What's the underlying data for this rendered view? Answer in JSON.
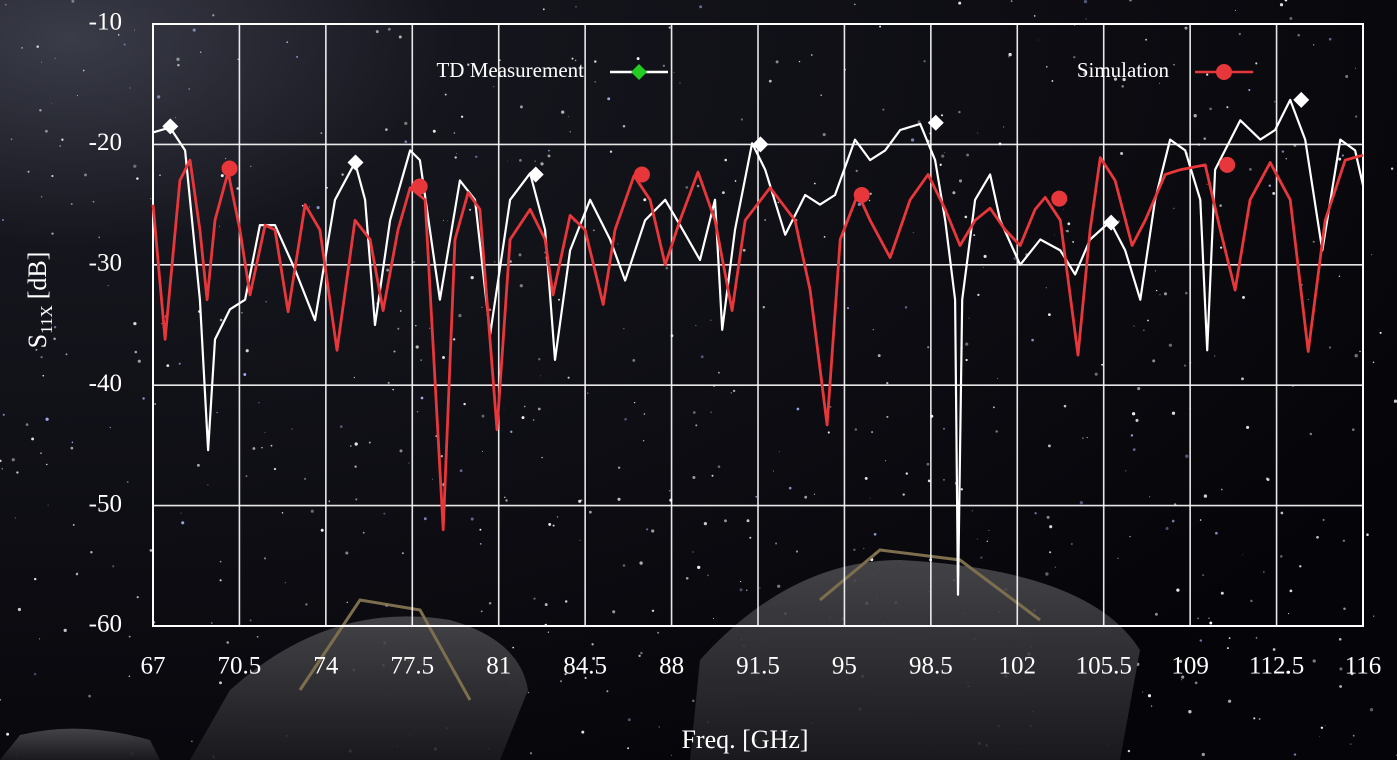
{
  "chart_data": {
    "type": "line",
    "xlabel": "Freq. [GHz]",
    "ylabel": "S",
    "ylabel_sub": "11X",
    "ylabel_unit": "[dB]",
    "xlim": [
      67,
      116
    ],
    "ylim": [
      -60,
      -10
    ],
    "xticks": [
      67,
      70.5,
      74,
      77.5,
      81,
      84.5,
      88,
      91.5,
      95,
      98.5,
      102,
      105.5,
      109,
      112.5,
      116
    ],
    "yticks": [
      -60,
      -50,
      -40,
      -30,
      -20,
      -10
    ],
    "grid": true,
    "series": [
      {
        "name": "TD Measurement",
        "color": "#ffffff",
        "marker": "diamond",
        "legend_marker_color": "#22cc22",
        "x": [
          67.0,
          67.69,
          68.3,
          68.9,
          69.23,
          69.51,
          70.12,
          70.73,
          71.33,
          71.94,
          72.75,
          73.56,
          74.37,
          75.18,
          75.59,
          75.99,
          76.6,
          77.41,
          77.81,
          78.62,
          79.43,
          80.04,
          80.65,
          81.46,
          82.27,
          82.88,
          83.28,
          83.89,
          84.7,
          85.51,
          86.12,
          86.93,
          87.74,
          88.34,
          89.15,
          89.76,
          90.05,
          90.57,
          91.26,
          91.79,
          92.6,
          93.41,
          94.01,
          94.62,
          95.43,
          96.04,
          96.65,
          97.26,
          98.07,
          98.67,
          99.08,
          99.48,
          99.6,
          99.77,
          100.29,
          100.9,
          101.31,
          102.12,
          102.93,
          103.74,
          104.34,
          104.95,
          105.76,
          106.37,
          106.98,
          107.58,
          108.19,
          108.8,
          109.41,
          109.69,
          110.01,
          111.03,
          111.84,
          112.44,
          113.05,
          113.66,
          114.35,
          115.08,
          115.68,
          116
        ],
        "values": [
          -19.0,
          -18.6,
          -20.5,
          -32.9,
          -45.4,
          -36.2,
          -33.7,
          -32.9,
          -26.7,
          -26.7,
          -30.4,
          -34.6,
          -24.6,
          -21.5,
          -24.6,
          -35.0,
          -26.3,
          -20.5,
          -21.3,
          -32.9,
          -23.0,
          -24.6,
          -35.8,
          -24.6,
          -22.4,
          -27.1,
          -37.9,
          -28.8,
          -24.6,
          -27.9,
          -31.3,
          -26.3,
          -24.6,
          -26.7,
          -29.6,
          -24.6,
          -35.4,
          -27.1,
          -19.9,
          -22.1,
          -27.5,
          -24.2,
          -25.0,
          -24.2,
          -19.6,
          -21.3,
          -20.5,
          -18.8,
          -18.3,
          -21.3,
          -26.3,
          -32.9,
          -57.4,
          -32.9,
          -24.6,
          -22.5,
          -26.3,
          -30.0,
          -27.9,
          -28.8,
          -30.8,
          -27.9,
          -26.4,
          -28.8,
          -32.9,
          -24.6,
          -19.6,
          -20.5,
          -24.6,
          -37.1,
          -22.1,
          -18.0,
          -19.6,
          -18.8,
          -16.3,
          -19.6,
          -28.8,
          -19.6,
          -20.5,
          -23.4
        ],
        "marker_x": [
          67.7,
          75.2,
          82.5,
          91.6,
          98.7,
          105.8,
          113.5
        ],
        "marker_values": [
          -18.5,
          -21.5,
          -22.5,
          -20,
          -18.2,
          -26.5,
          -16.3
        ]
      },
      {
        "name": "Simulation",
        "color": "#e8373a",
        "marker": "circle",
        "legend_marker_color": "#e8373a",
        "x": [
          67.0,
          67.49,
          68.09,
          68.5,
          68.9,
          69.19,
          69.51,
          70.04,
          70.52,
          70.93,
          71.54,
          71.94,
          72.47,
          73.16,
          73.76,
          74.45,
          75.18,
          75.79,
          76.32,
          76.92,
          77.41,
          78.02,
          78.75,
          79.23,
          79.76,
          80.24,
          80.93,
          81.46,
          82.27,
          82.88,
          83.2,
          83.89,
          84.5,
          85.23,
          85.71,
          86.48,
          87.13,
          87.74,
          88.34,
          89.07,
          89.76,
          90.45,
          90.98,
          91.99,
          93.0,
          93.61,
          94.3,
          94.83,
          95.55,
          96.04,
          96.85,
          97.66,
          98.39,
          99.08,
          99.68,
          100.29,
          100.9,
          101.51,
          102.12,
          102.72,
          103.13,
          103.74,
          104.46,
          104.95,
          105.36,
          105.96,
          106.65,
          107.18,
          107.99,
          108.6,
          109.61,
          110.22,
          110.82,
          111.43,
          112.24,
          113.05,
          113.78,
          114.47,
          115.28,
          116
        ],
        "values": [
          -25.0,
          -36.2,
          -23.0,
          -21.3,
          -27.1,
          -32.9,
          -26.3,
          -22.3,
          -27.1,
          -32.5,
          -26.7,
          -27.1,
          -33.9,
          -25.0,
          -27.1,
          -37.1,
          -26.3,
          -27.9,
          -33.8,
          -27.1,
          -23.6,
          -24.6,
          -52.0,
          -27.9,
          -24.0,
          -25.4,
          -43.7,
          -27.9,
          -25.4,
          -27.9,
          -32.5,
          -25.9,
          -27.1,
          -33.3,
          -27.1,
          -22.6,
          -24.6,
          -30.0,
          -26.3,
          -22.3,
          -26.3,
          -33.8,
          -26.3,
          -23.6,
          -26.3,
          -32.1,
          -43.3,
          -27.9,
          -24.1,
          -26.3,
          -29.4,
          -24.6,
          -22.5,
          -25.4,
          -28.4,
          -26.3,
          -25.3,
          -27.1,
          -28.4,
          -25.4,
          -24.4,
          -26.3,
          -37.5,
          -27.1,
          -21.1,
          -23.0,
          -28.4,
          -26.3,
          -22.5,
          -22.1,
          -21.7,
          -27.1,
          -32.1,
          -24.6,
          -21.5,
          -24.6,
          -37.2,
          -26.3,
          -21.3,
          -20.9
        ],
        "marker_x": [
          70.1,
          77.8,
          86.8,
          95.7,
          103.7,
          110.5
        ],
        "marker_values": [
          -22,
          -23.5,
          -22.5,
          -24.2,
          -24.5,
          -21.7
        ]
      }
    ]
  }
}
